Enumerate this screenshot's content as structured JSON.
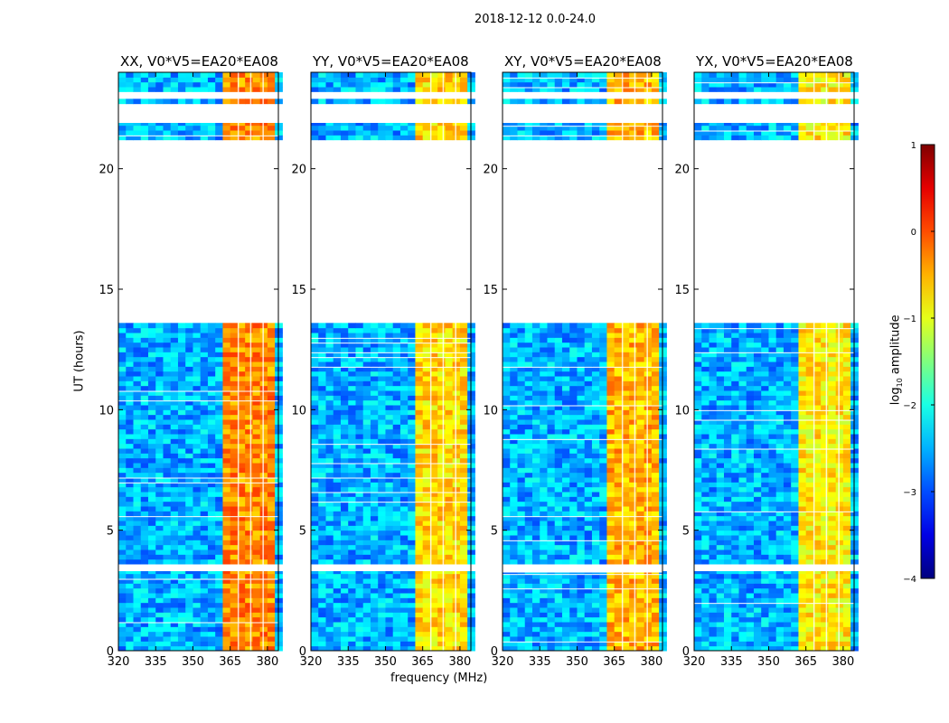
{
  "chart_data": {
    "type": "heatmap",
    "suptitle": "2018-12-12 0.0-24.0",
    "panels": [
      {
        "title": "XX, V0*V5=EA20*EA08",
        "band_level": -0.3
      },
      {
        "title": "YY, V0*V5=EA20*EA08",
        "band_level": -0.7
      },
      {
        "title": "XY, V0*V5=EA20*EA08",
        "band_level": -0.5
      },
      {
        "title": "YX, V0*V5=EA20*EA08",
        "band_level": -0.8
      }
    ],
    "xlabel": "frequency (MHz)",
    "ylabel": "UT (hours)",
    "xlim": [
      320,
      384.4
    ],
    "ylim": [
      0,
      24
    ],
    "xticks": [
      "320",
      "335",
      "350",
      "365",
      "380"
    ],
    "xtick_values": [
      320,
      335,
      350,
      365,
      380
    ],
    "yticks": [
      "0",
      "5",
      "10",
      "15",
      "20"
    ],
    "ytick_values": [
      0,
      5,
      10,
      15,
      20
    ],
    "data_time_blocks": [
      [
        0,
        3.3
      ],
      [
        3.6,
        13.6
      ],
      [
        21.2,
        21.9
      ],
      [
        22.7,
        22.9
      ],
      [
        23.2,
        24
      ]
    ],
    "high_band_mhz": [
      363,
      382
    ],
    "background_level": -2.5,
    "colorbar": {
      "label": "log10 amplitude",
      "ticks": [
        "1",
        "0",
        "−1",
        "−2",
        "−3",
        "−4"
      ],
      "tick_values": [
        1,
        0,
        -1,
        -2,
        -3,
        -4
      ],
      "range": [
        -4,
        1
      ]
    }
  }
}
